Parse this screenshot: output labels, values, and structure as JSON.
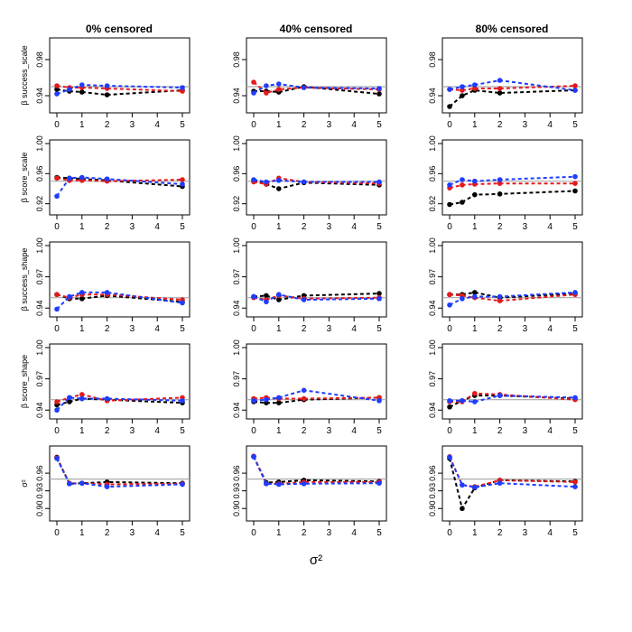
{
  "column_titles": [
    "0% censored",
    "40% censored",
    "80% censored"
  ],
  "row_ylabels": [
    "β success_scale",
    "β score_scale",
    "β success_shape",
    "β score_shape",
    "σ²"
  ],
  "xlabel": "σ²",
  "colors": {
    "black": "#000000",
    "red": "#e31a1c",
    "blue": "#1f3cff",
    "reference": "#aaaaaa"
  },
  "chart_data": {
    "type": "line",
    "x": [
      0,
      0.5,
      1,
      2,
      5
    ],
    "x_ticks": [
      "0",
      "1",
      "2",
      "3",
      "4",
      "5"
    ],
    "x_tick_values": [
      0,
      1,
      2,
      3,
      4,
      5
    ],
    "reference_line": 0.95,
    "series_names": [
      "black",
      "red",
      "blue"
    ],
    "rows": [
      {
        "ylim": [
          0.925,
          1.0
        ],
        "yticks": [
          0.94,
          0.98
        ],
        "ytick_labels": [
          "0.94",
          "0.98"
        ]
      },
      {
        "ylim": [
          0.91,
          1.0
        ],
        "yticks": [
          0.92,
          0.96,
          1.0
        ],
        "ytick_labels": [
          "0.92",
          "0.96",
          "1.00"
        ]
      },
      {
        "ylim": [
          0.935,
          1.0
        ],
        "yticks": [
          0.94,
          0.97,
          1.0
        ],
        "ytick_labels": [
          "0.94",
          "0.97",
          "1.00"
        ]
      },
      {
        "ylim": [
          0.935,
          1.0
        ],
        "yticks": [
          0.94,
          0.97,
          1.0
        ],
        "ytick_labels": [
          "0.94",
          "0.97",
          "1.00"
        ]
      },
      {
        "ylim": [
          0.885,
          1.0
        ],
        "yticks": [
          0.9,
          0.93,
          0.96
        ],
        "ytick_labels": [
          "0.90",
          "0.93",
          "0.96"
        ]
      }
    ],
    "panels": [
      [
        {
          "black": [
            0.947,
            0.945,
            0.944,
            0.941,
            0.946
          ],
          "red": [
            0.951,
            0.949,
            0.949,
            0.948,
            0.945
          ],
          "blue": [
            0.942,
            0.947,
            0.952,
            0.951,
            0.949
          ]
        },
        {
          "black": [
            0.955,
            0.954,
            0.953,
            0.951,
            0.943
          ],
          "red": [
            0.954,
            0.951,
            0.951,
            0.95,
            0.952
          ],
          "blue": [
            0.93,
            0.954,
            0.955,
            0.953,
            0.946
          ]
        },
        {
          "black": [
            0.953,
            0.949,
            0.949,
            0.952,
            0.946
          ],
          "red": [
            0.953,
            0.95,
            0.953,
            0.953,
            0.948
          ],
          "blue": [
            0.939,
            0.951,
            0.955,
            0.955,
            0.945
          ]
        },
        {
          "black": [
            0.945,
            0.948,
            0.951,
            0.95,
            0.947
          ],
          "red": [
            0.948,
            0.952,
            0.955,
            0.949,
            0.952
          ],
          "blue": [
            0.94,
            0.952,
            0.951,
            0.951,
            0.949
          ]
        },
        {
          "black": [
            0.987,
            0.942,
            0.943,
            0.945,
            0.943
          ],
          "red": [
            0.986,
            0.943,
            0.943,
            0.941,
            0.942
          ],
          "blue": [
            0.985,
            0.942,
            0.943,
            0.937,
            0.941
          ]
        }
      ],
      [
        {
          "black": [
            0.945,
            0.945,
            0.944,
            0.95,
            0.942
          ],
          "red": [
            0.955,
            0.943,
            0.947,
            0.949,
            0.947
          ],
          "blue": [
            0.943,
            0.951,
            0.953,
            0.949,
            0.948
          ]
        },
        {
          "black": [
            0.951,
            0.946,
            0.94,
            0.948,
            0.945
          ],
          "red": [
            0.949,
            0.946,
            0.954,
            0.949,
            0.947
          ],
          "blue": [
            0.952,
            0.949,
            0.951,
            0.949,
            0.949
          ]
        },
        {
          "black": [
            0.951,
            0.952,
            0.948,
            0.952,
            0.954
          ],
          "red": [
            0.95,
            0.948,
            0.952,
            0.949,
            0.95
          ],
          "blue": [
            0.951,
            0.946,
            0.953,
            0.948,
            0.949
          ]
        },
        {
          "black": [
            0.948,
            0.947,
            0.947,
            0.95,
            0.952
          ],
          "red": [
            0.951,
            0.952,
            0.951,
            0.951,
            0.952
          ],
          "blue": [
            0.949,
            0.95,
            0.952,
            0.959,
            0.949
          ]
        },
        {
          "black": [
            0.988,
            0.944,
            0.945,
            0.948,
            0.946
          ],
          "red": [
            0.989,
            0.942,
            0.942,
            0.945,
            0.945
          ],
          "blue": [
            0.988,
            0.942,
            0.941,
            0.942,
            0.943
          ]
        }
      ],
      [
        {
          "black": [
            0.928,
            0.94,
            0.946,
            0.943,
            0.946
          ],
          "red": [
            0.947,
            0.946,
            0.948,
            0.948,
            0.951
          ],
          "blue": [
            0.947,
            0.95,
            0.952,
            0.957,
            0.946
          ]
        },
        {
          "black": [
            0.919,
            0.922,
            0.932,
            0.933,
            0.937
          ],
          "red": [
            0.941,
            0.945,
            0.946,
            0.947,
            0.947
          ],
          "blue": [
            0.945,
            0.952,
            0.95,
            0.952,
            0.956
          ]
        },
        {
          "black": [
            0.953,
            0.953,
            0.955,
            0.95,
            0.954
          ],
          "red": [
            0.953,
            0.952,
            0.95,
            0.947,
            0.953
          ],
          "blue": [
            0.943,
            0.949,
            0.951,
            0.951,
            0.955
          ]
        },
        {
          "black": [
            0.943,
            0.949,
            0.954,
            0.954,
            0.951
          ],
          "red": [
            0.948,
            0.948,
            0.956,
            0.955,
            0.95
          ],
          "blue": [
            0.949,
            0.949,
            0.948,
            0.954,
            0.952
          ]
        },
        {
          "black": [
            0.985,
            0.9,
            0.935,
            0.948,
            0.946
          ],
          "red": [
            0.988,
            0.94,
            0.937,
            0.948,
            0.945
          ],
          "blue": [
            0.987,
            0.94,
            0.936,
            0.943,
            0.937
          ]
        }
      ]
    ]
  }
}
